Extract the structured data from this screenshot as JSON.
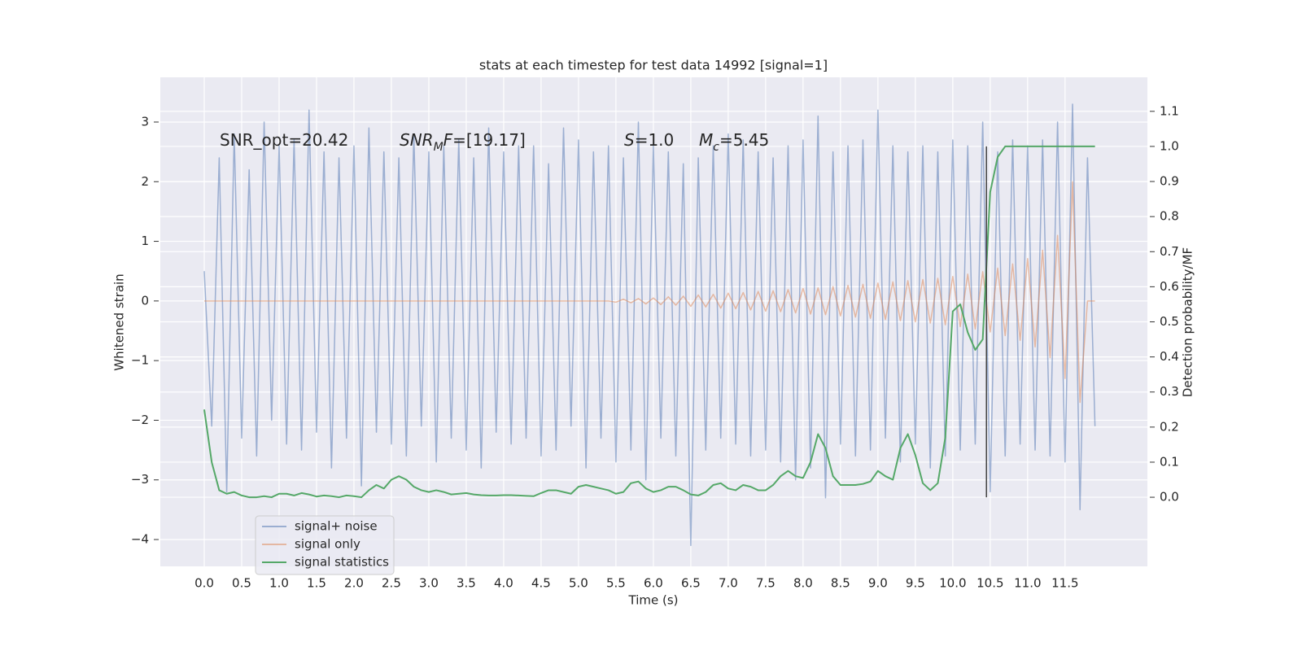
{
  "chart_data": {
    "type": "line",
    "title": "stats at each timestep for test data 14992 [signal=1]",
    "x_label": "Time (s)",
    "y_label": "Whitened strain",
    "y2_label": "Detection probability/MF",
    "annotations": [
      [
        {
          "text": "SNR_opt=20.42"
        }
      ],
      [
        {
          "text": "SNR",
          "italic": true
        },
        {
          "text": "M",
          "italic": true,
          "sub": true
        },
        {
          "text": "F",
          "italic": true
        },
        {
          "text": "=[19.17]"
        }
      ],
      [
        {
          "text": "S",
          "italic": true
        },
        {
          "text": "=1.0"
        }
      ],
      [
        {
          "text": "M",
          "italic": true
        },
        {
          "text": "c",
          "italic": true,
          "sub": true
        },
        {
          "text": "=5.45"
        }
      ]
    ],
    "x": [
      0,
      0.1,
      0.2,
      0.3,
      0.4,
      0.5,
      0.6,
      0.7,
      0.8,
      0.9,
      1,
      1.1,
      1.2,
      1.3,
      1.4,
      1.5,
      1.6,
      1.7,
      1.8,
      1.9,
      2,
      2.1,
      2.2,
      2.3,
      2.4,
      2.5,
      2.6,
      2.7,
      2.8,
      2.9,
      3,
      3.1,
      3.2,
      3.3,
      3.4,
      3.5,
      3.6,
      3.7,
      3.8,
      3.9,
      4,
      4.1,
      4.2,
      4.3,
      4.4,
      4.5,
      4.6,
      4.7,
      4.8,
      4.9,
      5,
      5.1,
      5.2,
      5.3,
      5.4,
      5.5,
      5.6,
      5.7,
      5.8,
      5.9,
      6,
      6.1,
      6.2,
      6.3,
      6.4,
      6.5,
      6.6,
      6.7,
      6.8,
      6.9,
      7,
      7.1,
      7.2,
      7.3,
      7.4,
      7.5,
      7.6,
      7.7,
      7.8,
      7.9,
      8,
      8.1,
      8.2,
      8.3,
      8.4,
      8.5,
      8.6,
      8.7,
      8.8,
      8.9,
      9,
      9.1,
      9.2,
      9.3,
      9.4,
      9.5,
      9.6,
      9.7,
      9.8,
      9.9,
      10,
      10.1,
      10.2,
      10.3,
      10.4,
      10.5,
      10.6,
      10.7,
      10.8,
      10.9,
      11,
      11.1,
      11.2,
      11.3,
      11.4,
      11.5,
      11.6,
      11.7,
      11.8,
      11.9
    ],
    "series": [
      {
        "name": "signal+ noise",
        "color": "#4c72b0",
        "alpha": 0.5,
        "values": [
          0.5,
          -2.1,
          2.4,
          -3.2,
          2.8,
          -2.3,
          2.2,
          -2.6,
          3.0,
          -2.0,
          2.6,
          -2.4,
          2.7,
          -2.5,
          3.2,
          -2.2,
          2.5,
          -2.8,
          2.4,
          -2.3,
          2.6,
          -3.1,
          2.9,
          -2.2,
          2.5,
          -2.4,
          2.4,
          -2.6,
          2.8,
          -2.1,
          2.5,
          -2.7,
          2.6,
          -2.3,
          2.7,
          -2.5,
          2.4,
          -2.8,
          2.9,
          -2.2,
          2.5,
          -2.4,
          2.6,
          -2.3,
          2.6,
          -2.6,
          2.3,
          -2.5,
          2.9,
          -2.1,
          2.7,
          -2.8,
          2.5,
          -2.3,
          2.6,
          -2.7,
          2.4,
          -2.5,
          3.0,
          -3.0,
          2.6,
          -2.3,
          2.5,
          -2.6,
          2.3,
          -4.1,
          2.4,
          -2.5,
          2.6,
          -2.3,
          2.8,
          -2.4,
          2.7,
          -2.6,
          2.5,
          -2.5,
          2.4,
          -2.7,
          2.6,
          -3.0,
          2.7,
          -2.8,
          3.1,
          -3.3,
          2.5,
          -2.4,
          2.6,
          -2.6,
          2.7,
          -2.5,
          3.2,
          -2.3,
          2.6,
          -2.7,
          2.5,
          -2.4,
          2.6,
          -2.8,
          2.5,
          -2.6,
          2.7,
          -2.5,
          2.6,
          -2.4,
          3.0,
          -3.2,
          2.5,
          -2.6,
          2.7,
          -2.4,
          2.6,
          -2.5,
          2.7,
          -2.6,
          3.0,
          -2.7,
          3.3,
          -3.5,
          2.4,
          -2.1
        ]
      },
      {
        "name": "signal only",
        "color": "#dd8452",
        "alpha": 0.5,
        "values": [
          0,
          0,
          0,
          0,
          0,
          0,
          0,
          0,
          0,
          0,
          0,
          0,
          0,
          0,
          0,
          0,
          0,
          0,
          0,
          0,
          0,
          0,
          0,
          0,
          0,
          0,
          0,
          0,
          0,
          0,
          0,
          0,
          0,
          0,
          0,
          0,
          0,
          0,
          0,
          0,
          0,
          0,
          0,
          0,
          0,
          0,
          0,
          0,
          0,
          0,
          0,
          0,
          0,
          0,
          0,
          -0.02,
          0.03,
          -0.03,
          0.04,
          -0.05,
          0.05,
          -0.06,
          0.07,
          -0.07,
          0.08,
          -0.09,
          0.1,
          -0.1,
          0.11,
          -0.12,
          0.13,
          -0.13,
          0.14,
          -0.15,
          0.16,
          -0.17,
          0.17,
          -0.18,
          0.19,
          -0.2,
          0.21,
          -0.22,
          0.22,
          -0.23,
          0.24,
          -0.25,
          0.26,
          -0.27,
          0.28,
          -0.29,
          0.3,
          -0.31,
          0.32,
          -0.33,
          0.34,
          -0.35,
          0.36,
          -0.37,
          0.38,
          -0.4,
          0.41,
          -0.43,
          0.45,
          -0.47,
          0.49,
          -0.52,
          0.55,
          -0.58,
          0.62,
          -0.66,
          0.71,
          -0.77,
          0.85,
          -0.95,
          1.1,
          -1.3,
          2.0,
          -1.7,
          0,
          0
        ]
      },
      {
        "name": "signal statistics",
        "color": "#55a868",
        "axis": "y2",
        "values": [
          0.25,
          0.1,
          0.02,
          0.01,
          0.015,
          0.005,
          0.0,
          0.0,
          0.003,
          0.0,
          0.01,
          0.01,
          0.005,
          0.012,
          0.008,
          0.002,
          0.005,
          0.003,
          0.0,
          0.005,
          0.003,
          0.0,
          0.02,
          0.035,
          0.025,
          0.05,
          0.06,
          0.05,
          0.03,
          0.02,
          0.015,
          0.02,
          0.015,
          0.008,
          0.01,
          0.012,
          0.008,
          0.006,
          0.005,
          0.005,
          0.006,
          0.006,
          0.005,
          0.004,
          0.003,
          0.012,
          0.02,
          0.02,
          0.015,
          0.01,
          0.03,
          0.035,
          0.03,
          0.025,
          0.02,
          0.01,
          0.015,
          0.04,
          0.045,
          0.025,
          0.015,
          0.02,
          0.03,
          0.03,
          0.02,
          0.008,
          0.005,
          0.015,
          0.035,
          0.04,
          0.025,
          0.02,
          0.035,
          0.03,
          0.02,
          0.02,
          0.035,
          0.06,
          0.075,
          0.06,
          0.055,
          0.1,
          0.18,
          0.14,
          0.06,
          0.035,
          0.035,
          0.035,
          0.038,
          0.045,
          0.075,
          0.06,
          0.05,
          0.14,
          0.18,
          0.12,
          0.04,
          0.02,
          0.04,
          0.17,
          0.53,
          0.55,
          0.47,
          0.42,
          0.45,
          0.87,
          0.97,
          1.0,
          1.0,
          1.0,
          1.0,
          1.0,
          1.0,
          1.0,
          1.0,
          1.0,
          1.0,
          1.0,
          1.0,
          1.0
        ]
      }
    ],
    "vline_x": 10.45,
    "vline_color": "#444444",
    "xlim": [
      -0.587,
      12.6
    ],
    "xticks": [
      {
        "value": 0,
        "label": "0.0"
      },
      0.5,
      {
        "value": 1,
        "label": "1.0"
      },
      1.5,
      {
        "value": 2,
        "label": "2.0"
      },
      2.5,
      {
        "value": 3,
        "label": "3.0"
      },
      3.5,
      {
        "value": 4,
        "label": "4.0"
      },
      4.5,
      {
        "value": 5,
        "label": "5.0"
      },
      5.5,
      {
        "value": 6,
        "label": "6.0"
      },
      6.5,
      {
        "value": 7,
        "label": "7.0"
      },
      7.5,
      {
        "value": 8,
        "label": "8.0"
      },
      8.5,
      {
        "value": 9,
        "label": "9.0"
      },
      9.5,
      {
        "value": 10,
        "label": "10.0"
      },
      10.5,
      {
        "value": 11,
        "label": "11.0"
      },
      11.5
    ],
    "ylim": [
      -4.45,
      3.75
    ],
    "yticks": [
      {
        "value": -4,
        "label": "−4"
      },
      {
        "value": -3,
        "label": "−3"
      },
      {
        "value": -2,
        "label": "−2"
      },
      {
        "value": -1,
        "label": "−1"
      },
      0,
      1,
      2,
      3
    ],
    "y2lim": [
      -0.197,
      1.197
    ],
    "y2ticks": [
      {
        "value": 0,
        "label": "0.0"
      },
      0.1,
      0.2,
      0.3,
      0.4,
      0.5,
      0.6,
      0.7,
      0.8,
      0.9,
      {
        "value": 1,
        "label": "1.0"
      },
      1.1
    ],
    "grid": true
  }
}
